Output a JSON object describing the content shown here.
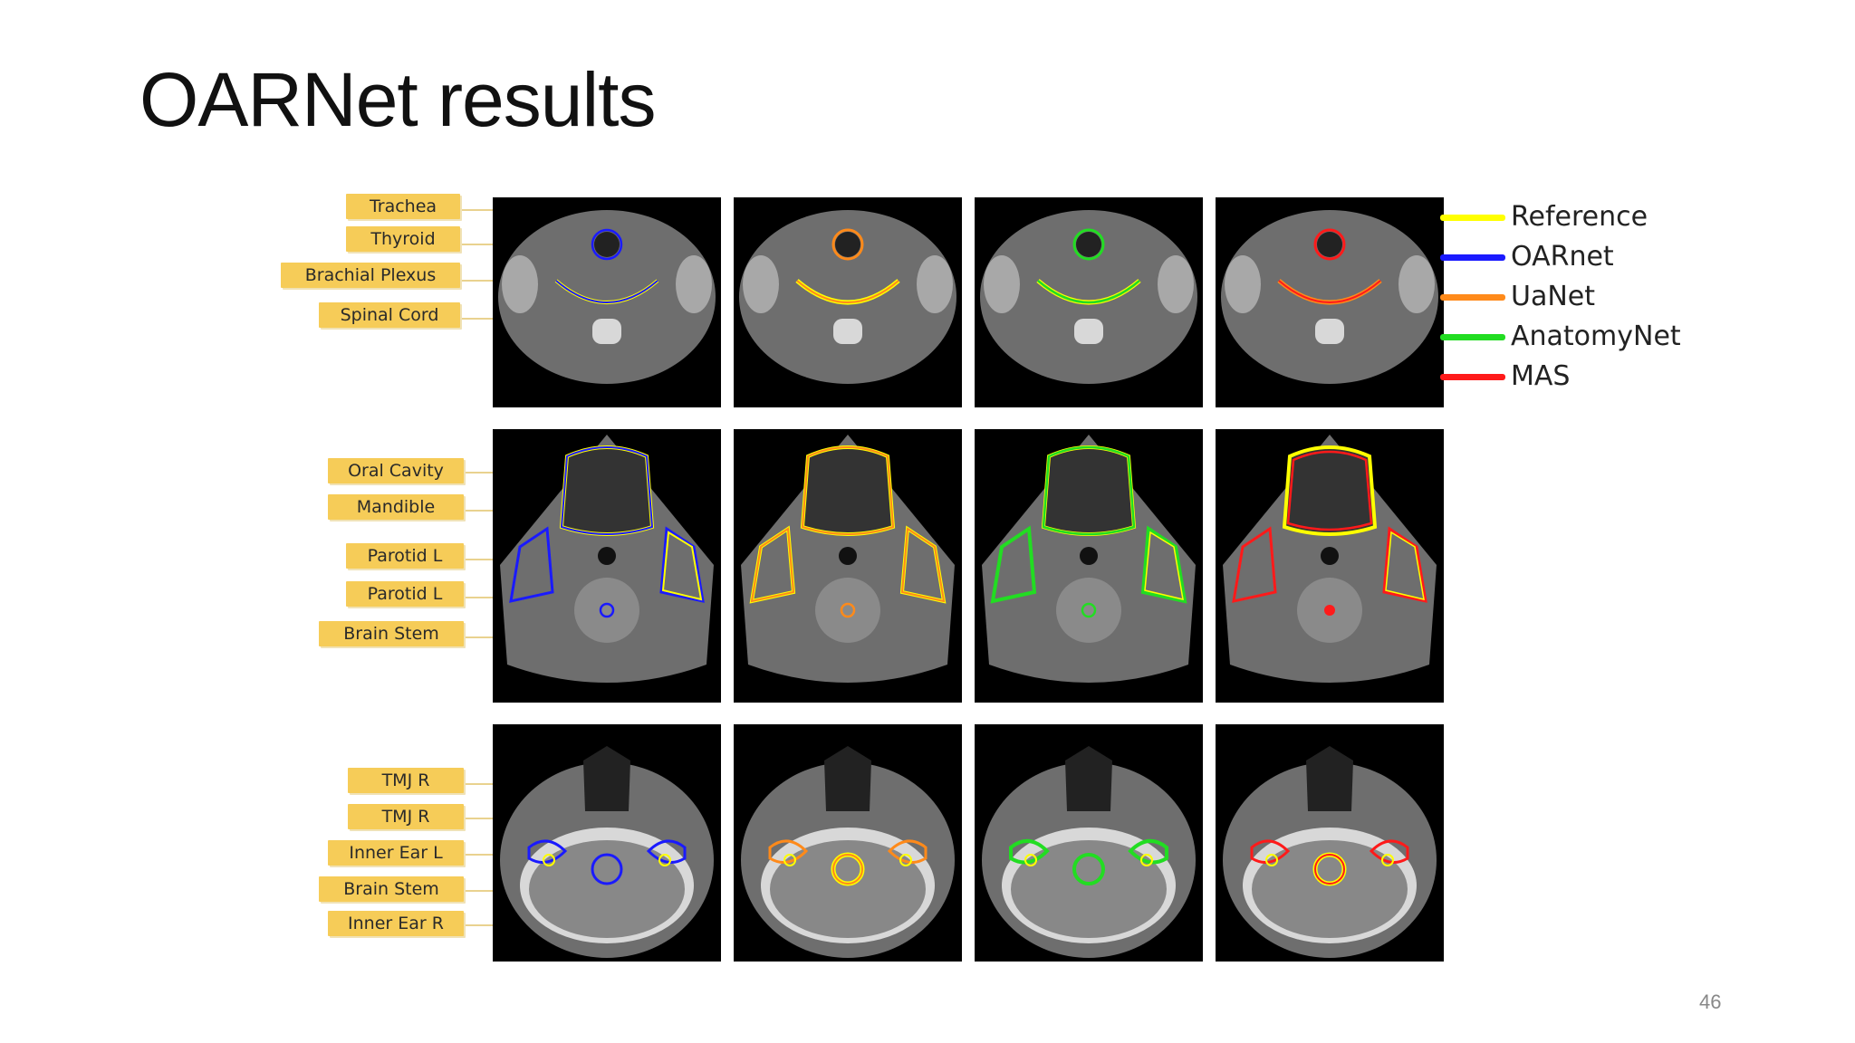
{
  "slide": {
    "title": "OARNet results",
    "page_number": "46"
  },
  "legend": [
    {
      "label": "Reference",
      "color": "#ffff00"
    },
    {
      "label": "OARnet",
      "color": "#1a1aff"
    },
    {
      "label": "UaNet",
      "color": "#ff8a1a"
    },
    {
      "label": "AnatomyNet",
      "color": "#22dd22"
    },
    {
      "label": "MAS",
      "color": "#ff1a1a"
    }
  ],
  "rows": [
    {
      "labels": [
        "Trachea",
        "Thyroid",
        "Brachial Plexus",
        "Spinal Cord"
      ]
    },
    {
      "labels": [
        "Oral Cavity",
        "Mandible",
        "Parotid L",
        "Parotid L",
        "Brain Stem"
      ]
    },
    {
      "labels": [
        "TMJ R",
        "TMJ R",
        "Inner Ear L",
        "Brain Stem",
        "Inner Ear R"
      ]
    }
  ],
  "columns": [
    "OARnet",
    "UaNet",
    "AnatomyNet",
    "MAS"
  ],
  "colors": {
    "label_bg": "#f6cc58",
    "panel_bg": "#000000",
    "ct_tissue": "#6e6e6e",
    "ct_bone": "#d8d8d8"
  }
}
